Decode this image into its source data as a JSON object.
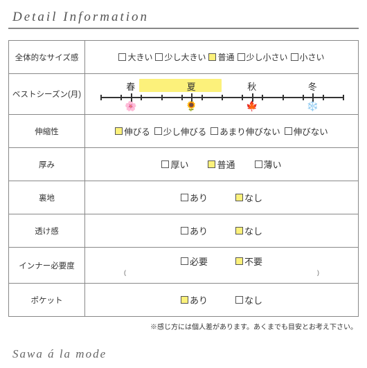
{
  "heading": "Detail Information",
  "footer": "Sawa á la mode",
  "footnote": "※感じ方には個人差があります。あくまでも目安とお考え下さい。",
  "colors": {
    "highlight": "#fcf17b",
    "border": "#888888",
    "text": "#333333",
    "bg": "#ffffff"
  },
  "rows": {
    "size": {
      "label": "全体的なサイズ感",
      "options": [
        {
          "text": "大きい",
          "selected": false
        },
        {
          "text": "少し大きい",
          "selected": false
        },
        {
          "text": "普通",
          "selected": true
        },
        {
          "text": "少し小さい",
          "selected": false
        },
        {
          "text": "小さい",
          "selected": false
        }
      ]
    },
    "season": {
      "label": "ベストシーズン(月)",
      "names": [
        "春",
        "夏",
        "秋",
        "冬"
      ],
      "icons": [
        "🌸",
        "🌻",
        "🍁",
        "❄️"
      ],
      "highlight_start_pct": 16,
      "highlight_width_pct": 34
    },
    "stretch": {
      "label": "伸縮性",
      "options": [
        {
          "text": "伸びる",
          "selected": true
        },
        {
          "text": "少し伸びる",
          "selected": false
        },
        {
          "text": "あまり伸びない",
          "selected": false
        },
        {
          "text": "伸びない",
          "selected": false
        }
      ]
    },
    "thickness": {
      "label": "厚み",
      "options": [
        {
          "text": "厚い",
          "selected": false
        },
        {
          "text": "普通",
          "selected": true
        },
        {
          "text": "薄い",
          "selected": false
        }
      ]
    },
    "lining": {
      "label": "裏地",
      "options": [
        {
          "text": "あり",
          "selected": false
        },
        {
          "text": "なし",
          "selected": true
        }
      ]
    },
    "sheer": {
      "label": "透け感",
      "options": [
        {
          "text": "あり",
          "selected": false
        },
        {
          "text": "なし",
          "selected": true
        }
      ]
    },
    "inner": {
      "label": "インナー必要度",
      "options": [
        {
          "text": "必要",
          "selected": false
        },
        {
          "text": "不要",
          "selected": true
        }
      ],
      "paren_left": "(",
      "paren_right": ")"
    },
    "pocket": {
      "label": "ポケット",
      "options": [
        {
          "text": "あり",
          "selected": true
        },
        {
          "text": "なし",
          "selected": false
        }
      ]
    }
  }
}
